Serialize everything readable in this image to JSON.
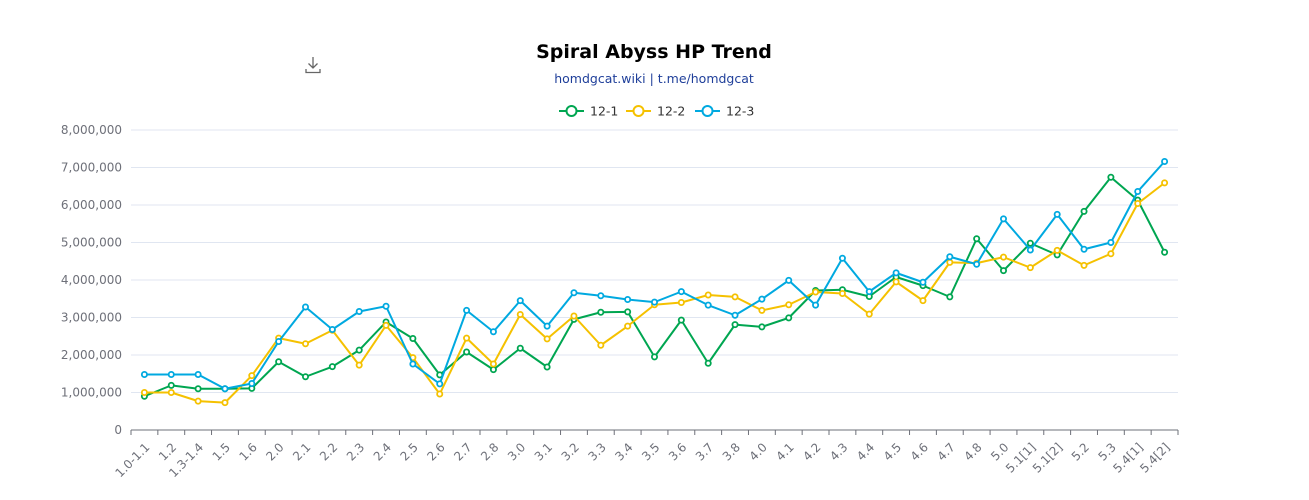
{
  "toolbar": {
    "download_icon": "download-icon"
  },
  "chart_data": {
    "type": "line",
    "title": "Spiral Abyss HP Trend",
    "subtitle": "homdgcat.wiki | t.me/homdgcat",
    "xlabel": "",
    "ylabel": "",
    "ylim": [
      0,
      8000000
    ],
    "yticks": [
      0,
      1000000,
      2000000,
      3000000,
      4000000,
      5000000,
      6000000,
      7000000,
      8000000
    ],
    "ytick_labels": [
      "0",
      "1,000,000",
      "2,000,000",
      "3,000,000",
      "4,000,000",
      "5,000,000",
      "6,000,000",
      "7,000,000",
      "8,000,000"
    ],
    "grid": true,
    "legend_position": "top-center",
    "categories": [
      "1.0-1.1",
      "1.2",
      "1.3-1.4",
      "1.5",
      "1.6",
      "2.0",
      "2.1",
      "2.2",
      "2.3",
      "2.4",
      "2.5",
      "2.6",
      "2.7",
      "2.8",
      "3.0",
      "3.1",
      "3.2",
      "3.3",
      "3.4",
      "3.5",
      "3.6",
      "3.7",
      "3.8",
      "4.0",
      "4.1",
      "4.2",
      "4.3",
      "4.4",
      "4.5",
      "4.6",
      "4.7",
      "4.8",
      "5.0",
      "5.1[1]",
      "5.1[2]",
      "5.2",
      "5.3",
      "5.4[1]",
      "5.4[2]"
    ],
    "series": [
      {
        "name": "12-1",
        "color": "#00a651",
        "values": [
          900000,
          1190000,
          1100000,
          1100000,
          1110000,
          1820000,
          1420000,
          1690000,
          2130000,
          2880000,
          2440000,
          1470000,
          2080000,
          1610000,
          2180000,
          1680000,
          2950000,
          3140000,
          3150000,
          1950000,
          2930000,
          1780000,
          2810000,
          2750000,
          2990000,
          3720000,
          3740000,
          3560000,
          4080000,
          3850000,
          3550000,
          5100000,
          4250000,
          4980000,
          4670000,
          5830000,
          6740000,
          6130000,
          4740000
        ]
      },
      {
        "name": "12-2",
        "color": "#f5c100",
        "values": [
          1000000,
          1000000,
          770000,
          730000,
          1450000,
          2450000,
          2300000,
          2660000,
          1730000,
          2790000,
          1930000,
          960000,
          2450000,
          1760000,
          3080000,
          2430000,
          3040000,
          2260000,
          2770000,
          3340000,
          3400000,
          3600000,
          3550000,
          3190000,
          3340000,
          3680000,
          3640000,
          3090000,
          3950000,
          3450000,
          4470000,
          4450000,
          4610000,
          4330000,
          4790000,
          4390000,
          4700000,
          6040000,
          6590000
        ]
      },
      {
        "name": "12-3",
        "color": "#00a9e0",
        "values": [
          1480000,
          1480000,
          1480000,
          1100000,
          1240000,
          2360000,
          3280000,
          2680000,
          3160000,
          3300000,
          1760000,
          1230000,
          3190000,
          2620000,
          3450000,
          2770000,
          3660000,
          3580000,
          3480000,
          3410000,
          3690000,
          3330000,
          3060000,
          3490000,
          3990000,
          3330000,
          4580000,
          3690000,
          4190000,
          3940000,
          4620000,
          4420000,
          5630000,
          4800000,
          5750000,
          4820000,
          5000000,
          6360000,
          7160000
        ]
      }
    ]
  }
}
